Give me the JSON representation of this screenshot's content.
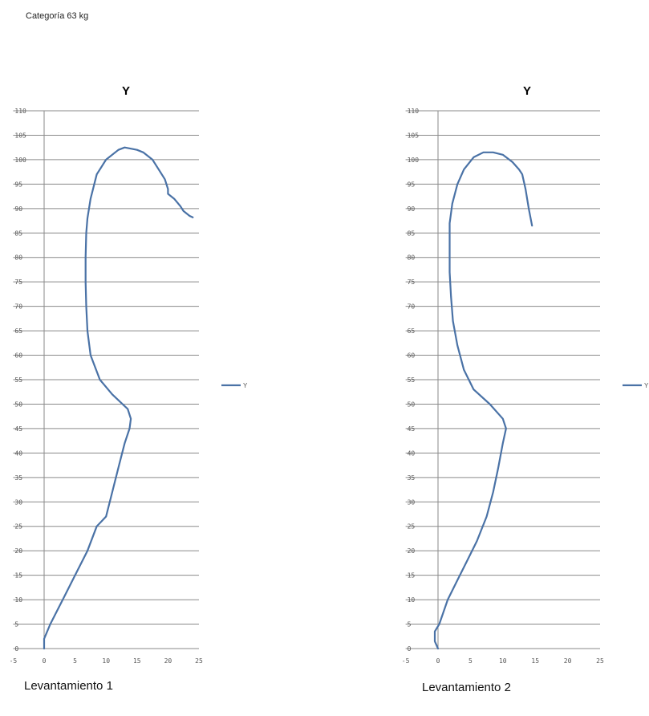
{
  "header": {
    "category": "Categoría 63 kg"
  },
  "chart_data": [
    {
      "type": "line",
      "title": "Y",
      "caption": "Levantamiento 1",
      "xlim": [
        -5,
        25
      ],
      "ylim": [
        0,
        110
      ],
      "x_ticks": [
        "-5",
        "0",
        "5",
        "10",
        "15",
        "20",
        "25"
      ],
      "y_ticks": [
        "0",
        "5",
        "10",
        "15",
        "20",
        "25",
        "30",
        "35",
        "40",
        "45",
        "50",
        "55",
        "60",
        "65",
        "70",
        "75",
        "80",
        "85",
        "90",
        "95",
        "100",
        "105",
        "110"
      ],
      "grid": true,
      "legend_position": "right",
      "series": [
        {
          "name": "Y",
          "color": "#4a72a6",
          "points": [
            [
              0,
              0
            ],
            [
              0,
              2
            ],
            [
              1,
              5
            ],
            [
              3,
              10
            ],
            [
              5,
              15
            ],
            [
              7,
              20
            ],
            [
              8.5,
              25
            ],
            [
              10,
              27
            ],
            [
              11,
              32
            ],
            [
              12,
              37
            ],
            [
              13,
              42
            ],
            [
              13.8,
              45
            ],
            [
              14,
              47
            ],
            [
              13.5,
              49
            ],
            [
              11,
              52
            ],
            [
              9,
              55
            ],
            [
              7.5,
              60
            ],
            [
              7,
              65
            ],
            [
              6.8,
              70
            ],
            [
              6.7,
              75
            ],
            [
              6.7,
              80
            ],
            [
              6.8,
              85
            ],
            [
              7,
              88
            ],
            [
              7.5,
              92
            ],
            [
              8.5,
              97
            ],
            [
              10,
              100
            ],
            [
              12,
              102
            ],
            [
              13,
              102.5
            ],
            [
              15,
              102
            ],
            [
              16,
              101.5
            ],
            [
              17.5,
              100
            ],
            [
              18.5,
              98
            ],
            [
              19.5,
              96
            ],
            [
              20,
              94
            ],
            [
              20,
              93
            ],
            [
              21,
              92
            ],
            [
              22,
              90.5
            ],
            [
              22.5,
              89.5
            ],
            [
              23.5,
              88.5
            ],
            [
              24,
              88.2
            ]
          ]
        }
      ]
    },
    {
      "type": "line",
      "title": "Y",
      "caption": "Levantamiento 2",
      "xlim": [
        -5,
        25
      ],
      "ylim": [
        0,
        110
      ],
      "x_ticks": [
        "-5",
        "0",
        "5",
        "10",
        "15",
        "20",
        "25"
      ],
      "y_ticks": [
        "0",
        "5",
        "10",
        "15",
        "20",
        "25",
        "30",
        "35",
        "40",
        "45",
        "50",
        "55",
        "60",
        "65",
        "70",
        "75",
        "80",
        "85",
        "90",
        "95",
        "100",
        "105",
        "110"
      ],
      "grid": true,
      "legend_position": "right",
      "series": [
        {
          "name": "Y",
          "color": "#4a72a6",
          "points": [
            [
              0,
              0
            ],
            [
              -0.5,
              1.5
            ],
            [
              -0.5,
              3.5
            ],
            [
              0.2,
              5
            ],
            [
              1.5,
              10
            ],
            [
              3,
              14
            ],
            [
              4.5,
              18
            ],
            [
              6,
              22
            ],
            [
              7.5,
              27
            ],
            [
              8.5,
              32
            ],
            [
              9.3,
              37
            ],
            [
              10,
              42
            ],
            [
              10.5,
              45
            ],
            [
              10,
              47
            ],
            [
              8,
              50
            ],
            [
              5.5,
              53
            ],
            [
              4,
              57
            ],
            [
              3,
              62
            ],
            [
              2.3,
              67
            ],
            [
              2,
              72
            ],
            [
              1.8,
              77
            ],
            [
              1.8,
              82
            ],
            [
              1.8,
              87
            ],
            [
              2.2,
              91
            ],
            [
              3,
              95
            ],
            [
              4,
              98
            ],
            [
              5.5,
              100.5
            ],
            [
              7,
              101.5
            ],
            [
              8.5,
              101.5
            ],
            [
              10,
              101
            ],
            [
              11.5,
              99.5
            ],
            [
              12.5,
              98
            ],
            [
              13,
              97
            ],
            [
              13.5,
              94
            ],
            [
              14,
              90
            ],
            [
              14.5,
              86.5
            ]
          ]
        }
      ]
    }
  ]
}
